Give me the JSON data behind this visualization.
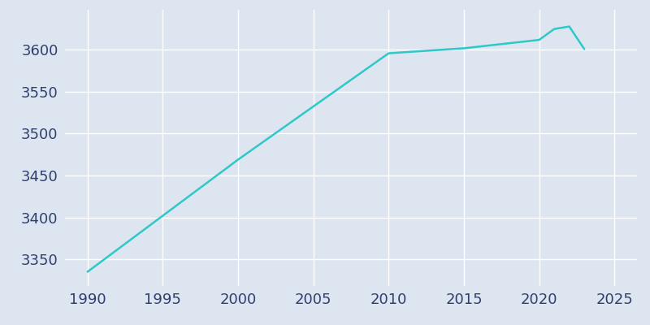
{
  "years": [
    1990,
    2000,
    2010,
    2015,
    2020,
    2021,
    2022,
    2023
  ],
  "population": [
    3335,
    3469,
    3596,
    3602,
    3612,
    3625,
    3628,
    3601
  ],
  "line_color": "#2ec8c8",
  "background_color": "#dde6f0",
  "plot_bg_color": "#dde6f0",
  "grid_color": "#ffffff",
  "text_color": "#2e3f6e",
  "xlim": [
    1988.5,
    2026.5
  ],
  "ylim": [
    3318,
    3648
  ],
  "xticks": [
    1990,
    1995,
    2000,
    2005,
    2010,
    2015,
    2020,
    2025
  ],
  "yticks": [
    3350,
    3400,
    3450,
    3500,
    3550,
    3600
  ],
  "line_width": 1.8,
  "tick_labelsize": 13
}
